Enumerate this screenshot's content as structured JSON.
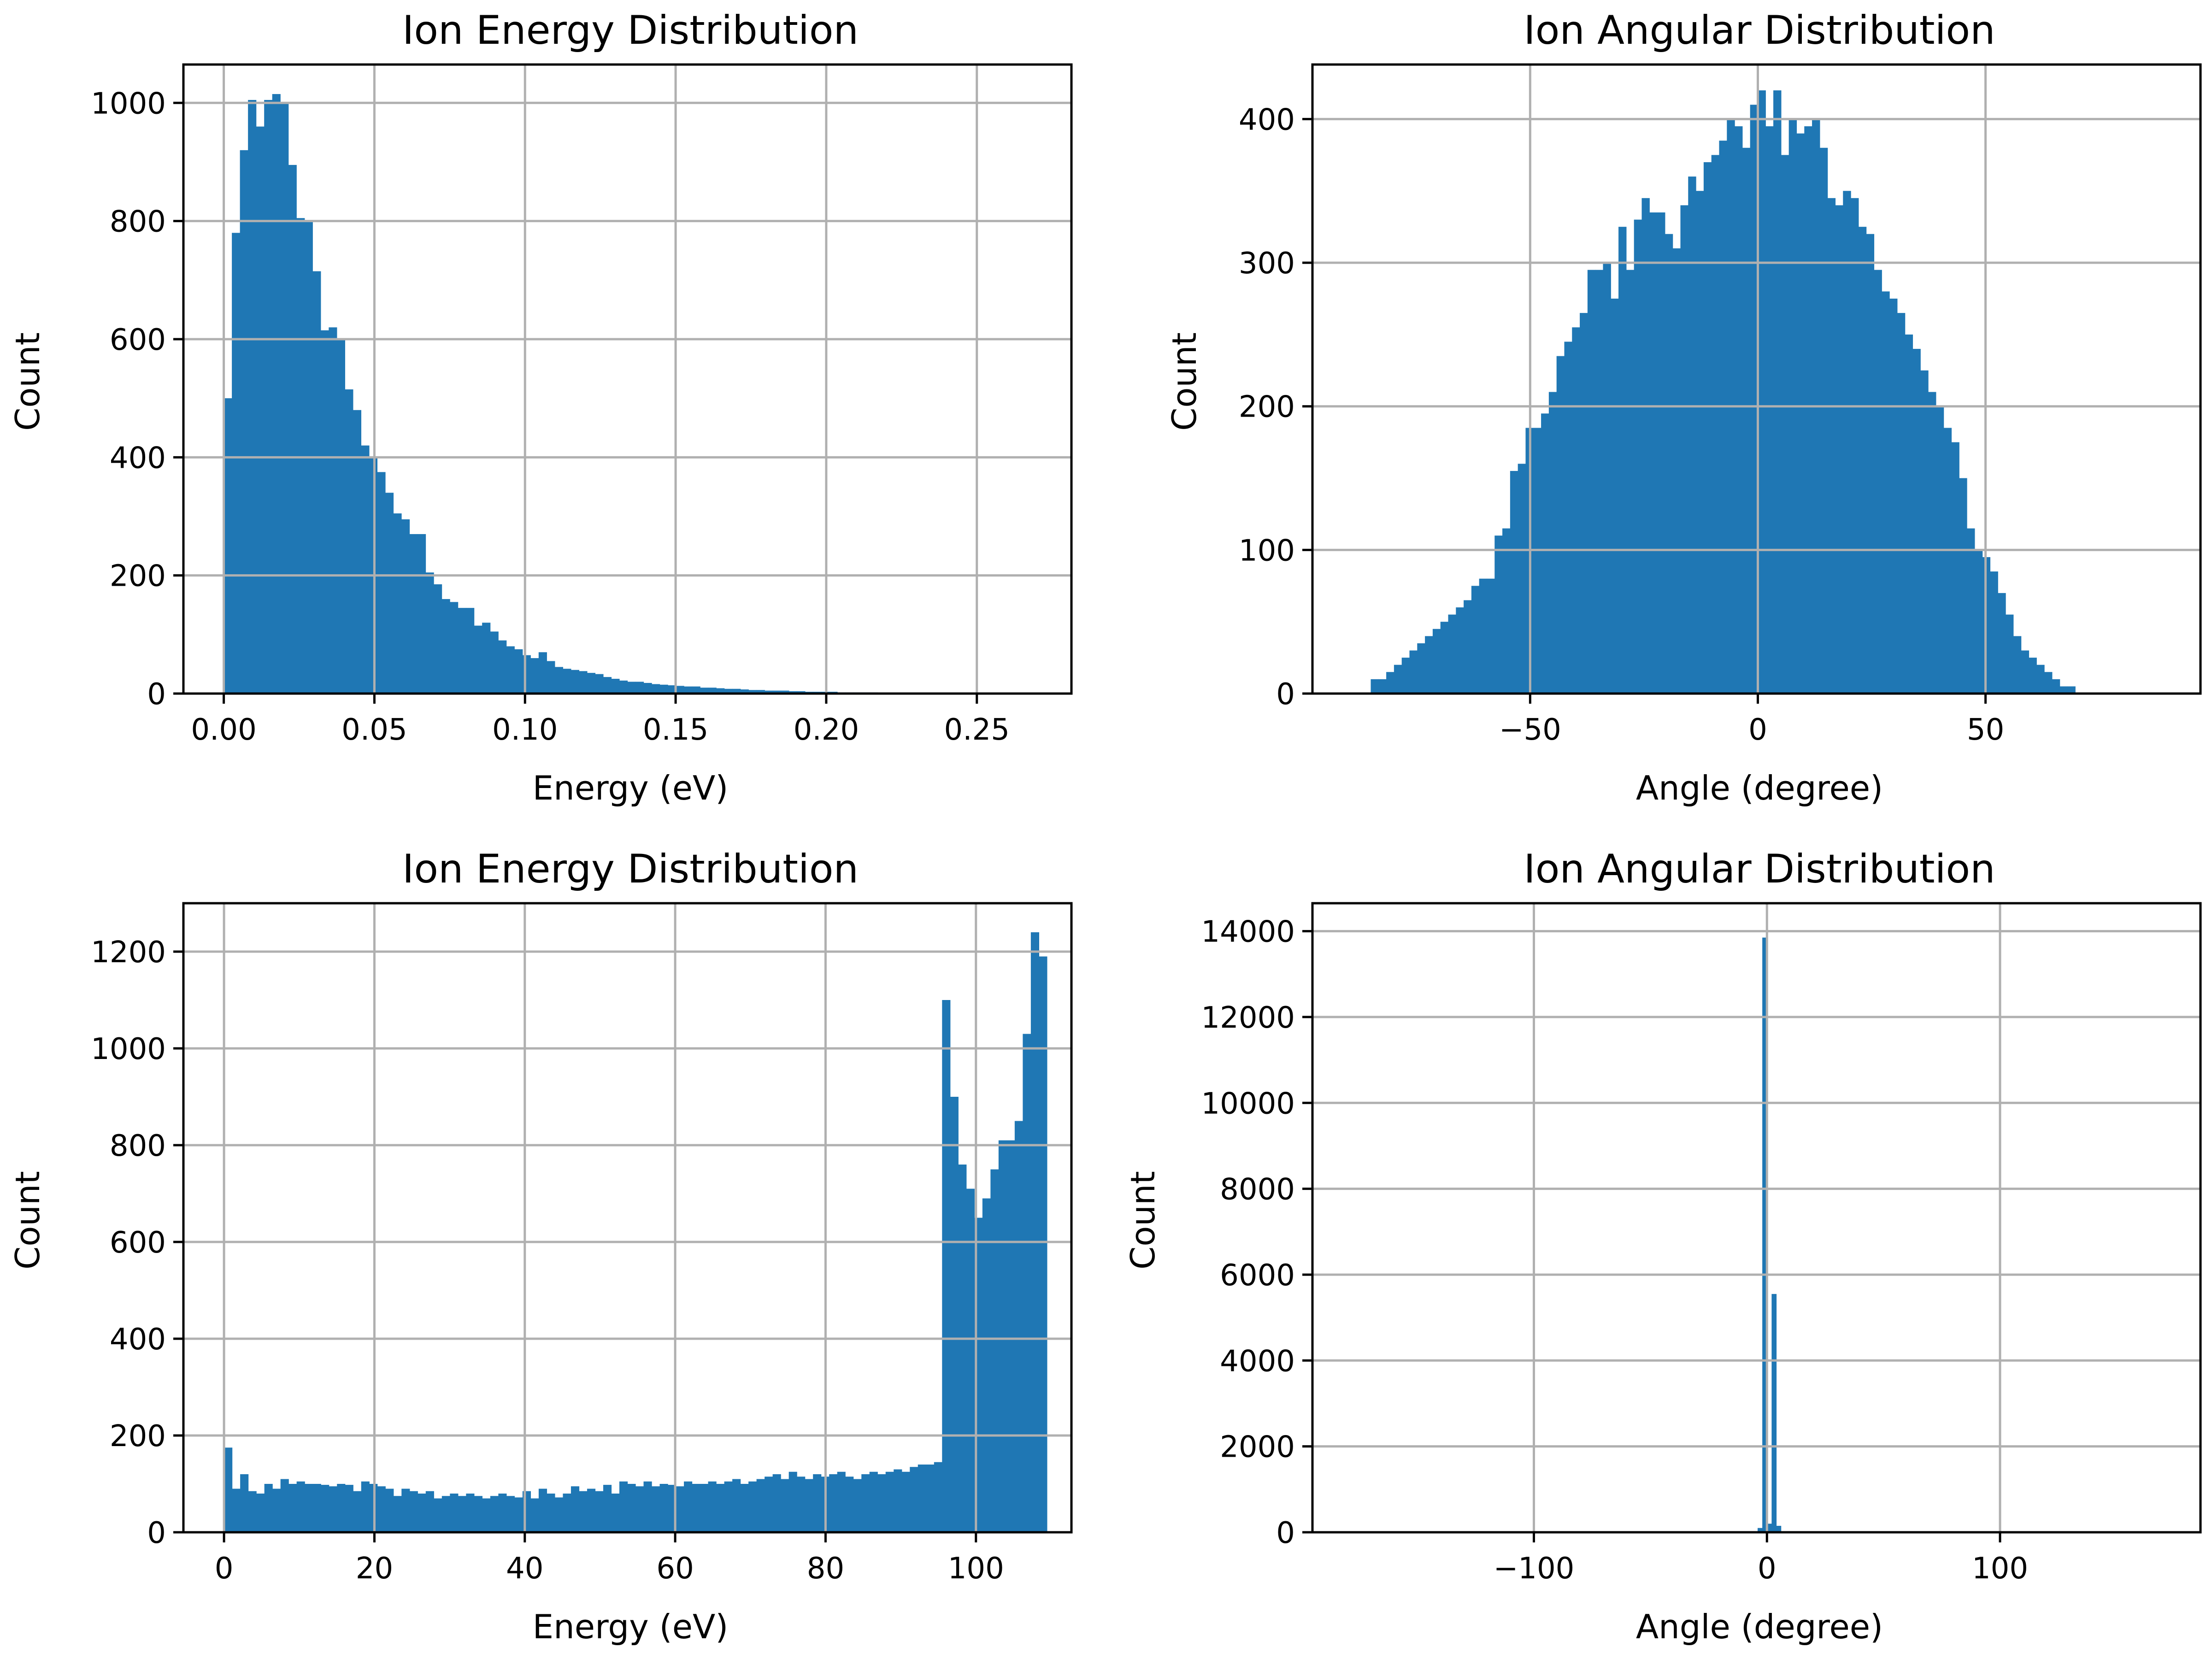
{
  "chart_data": [
    {
      "type": "bar",
      "title": "Ion Energy Distribution",
      "xlabel": "Energy (eV)",
      "ylabel": "Count",
      "xlim": [
        -0.0134,
        0.2814
      ],
      "ylim": [
        0,
        1065
      ],
      "xticks": [
        0.0,
        0.05,
        0.1,
        0.15,
        0.2,
        0.25
      ],
      "xtick_labels": [
        "0.00",
        "0.05",
        "0.10",
        "0.15",
        "0.20",
        "0.25"
      ],
      "yticks": [
        0,
        200,
        400,
        600,
        800,
        1000
      ],
      "ytick_labels": [
        "0",
        "200",
        "400",
        "600",
        "800",
        "1000"
      ],
      "grid": true,
      "color": "#1f77b4",
      "bin_start": 0.0,
      "bin_width": 0.00268,
      "values": [
        500,
        780,
        920,
        1005,
        960,
        1005,
        1015,
        1000,
        895,
        805,
        800,
        715,
        615,
        620,
        600,
        515,
        480,
        420,
        400,
        375,
        340,
        305,
        295,
        270,
        270,
        205,
        185,
        160,
        155,
        145,
        145,
        115,
        120,
        105,
        90,
        80,
        75,
        65,
        60,
        70,
        55,
        45,
        42,
        40,
        38,
        35,
        33,
        28,
        25,
        22,
        20,
        20,
        18,
        16,
        15,
        14,
        13,
        12,
        12,
        10,
        10,
        9,
        8,
        8,
        7,
        6,
        6,
        5,
        5,
        5,
        4,
        4,
        3,
        3,
        3,
        3,
        2,
        2,
        2,
        2,
        2,
        1,
        1,
        1,
        1,
        1,
        1,
        1,
        1,
        1,
        1,
        1,
        1,
        1,
        1,
        1,
        1,
        1,
        1,
        1
      ]
    },
    {
      "type": "bar",
      "title": "Ion Angular Distribution",
      "xlabel": "Angle (degree)",
      "ylabel": "Count",
      "xlim": [
        -97.8,
        97.2
      ],
      "ylim": [
        0,
        438
      ],
      "xticks": [
        -50,
        0,
        50
      ],
      "xtick_labels": [
        "−50",
        "0",
        "50"
      ],
      "yticks": [
        0,
        100,
        200,
        300,
        400
      ],
      "ytick_labels": [
        "0",
        "100",
        "200",
        "300",
        "400"
      ],
      "grid": true,
      "color": "#1f77b4",
      "bin_start": -85.0,
      "bin_width": 1.7,
      "values": [
        10,
        10,
        15,
        20,
        25,
        30,
        35,
        40,
        45,
        50,
        55,
        60,
        65,
        75,
        80,
        80,
        110,
        115,
        155,
        160,
        185,
        185,
        195,
        210,
        235,
        245,
        255,
        265,
        295,
        295,
        300,
        275,
        325,
        295,
        330,
        345,
        335,
        335,
        320,
        310,
        340,
        360,
        350,
        370,
        375,
        385,
        400,
        395,
        380,
        410,
        420,
        395,
        420,
        375,
        400,
        390,
        395,
        400,
        380,
        345,
        340,
        350,
        345,
        325,
        320,
        295,
        280,
        275,
        265,
        250,
        240,
        225,
        210,
        200,
        185,
        175,
        150,
        115,
        100,
        95,
        85,
        70,
        55,
        40,
        30,
        25,
        20,
        15,
        10,
        5,
        5
      ]
    },
    {
      "type": "bar",
      "title": "Ion Energy Distribution",
      "xlabel": "Energy (eV)",
      "ylabel": "Count",
      "xlim": [
        -5.4,
        112.7
      ],
      "ylim": [
        0,
        1300
      ],
      "xticks": [
        0,
        20,
        40,
        60,
        80,
        100
      ],
      "xtick_labels": [
        "0",
        "20",
        "40",
        "60",
        "80",
        "100"
      ],
      "yticks": [
        0,
        200,
        400,
        600,
        800,
        1000,
        1200
      ],
      "ytick_labels": [
        "0",
        "200",
        "400",
        "600",
        "800",
        "1000",
        "1200"
      ],
      "grid": true,
      "color": "#1f77b4",
      "bin_start": 0.0,
      "bin_width": 1.073,
      "values": [
        175,
        90,
        120,
        85,
        80,
        100,
        90,
        110,
        100,
        105,
        100,
        100,
        98,
        95,
        100,
        98,
        85,
        105,
        100,
        95,
        90,
        75,
        90,
        85,
        80,
        85,
        70,
        75,
        80,
        75,
        80,
        75,
        70,
        75,
        80,
        75,
        72,
        85,
        70,
        90,
        80,
        72,
        80,
        95,
        85,
        90,
        85,
        98,
        80,
        105,
        100,
        95,
        105,
        95,
        100,
        98,
        95,
        105,
        100,
        100,
        105,
        100,
        105,
        110,
        100,
        105,
        110,
        115,
        120,
        110,
        125,
        115,
        110,
        120,
        115,
        120,
        125,
        115,
        110,
        120,
        125,
        120,
        125,
        130,
        125,
        135,
        140,
        140,
        145,
        1100,
        900,
        760,
        710,
        650,
        690,
        750,
        810,
        810,
        850,
        1030,
        1240,
        1190
      ]
    },
    {
      "type": "bar",
      "title": "Ion Angular Distribution",
      "xlabel": "Angle (degree)",
      "ylabel": "Count",
      "xlim": [
        -195,
        186
      ],
      "ylim": [
        0,
        14650
      ],
      "xticks": [
        -100,
        0,
        100
      ],
      "xtick_labels": [
        "−100",
        "0",
        "100"
      ],
      "yticks": [
        0,
        2000,
        4000,
        6000,
        8000,
        10000,
        12000,
        14000
      ],
      "ytick_labels": [
        "0",
        "2000",
        "4000",
        "6000",
        "8000",
        "10000",
        "12000",
        "14000"
      ],
      "grid": true,
      "color": "#1f77b4",
      "bins": [
        {
          "x0": -4,
          "x1": -2,
          "value": 100
        },
        {
          "x0": -2,
          "x1": 0,
          "value": 13850
        },
        {
          "x0": 0,
          "x1": 2,
          "value": 200
        },
        {
          "x0": 2,
          "x1": 4,
          "value": 5550
        },
        {
          "x0": 4,
          "x1": 6,
          "value": 150
        }
      ]
    }
  ]
}
